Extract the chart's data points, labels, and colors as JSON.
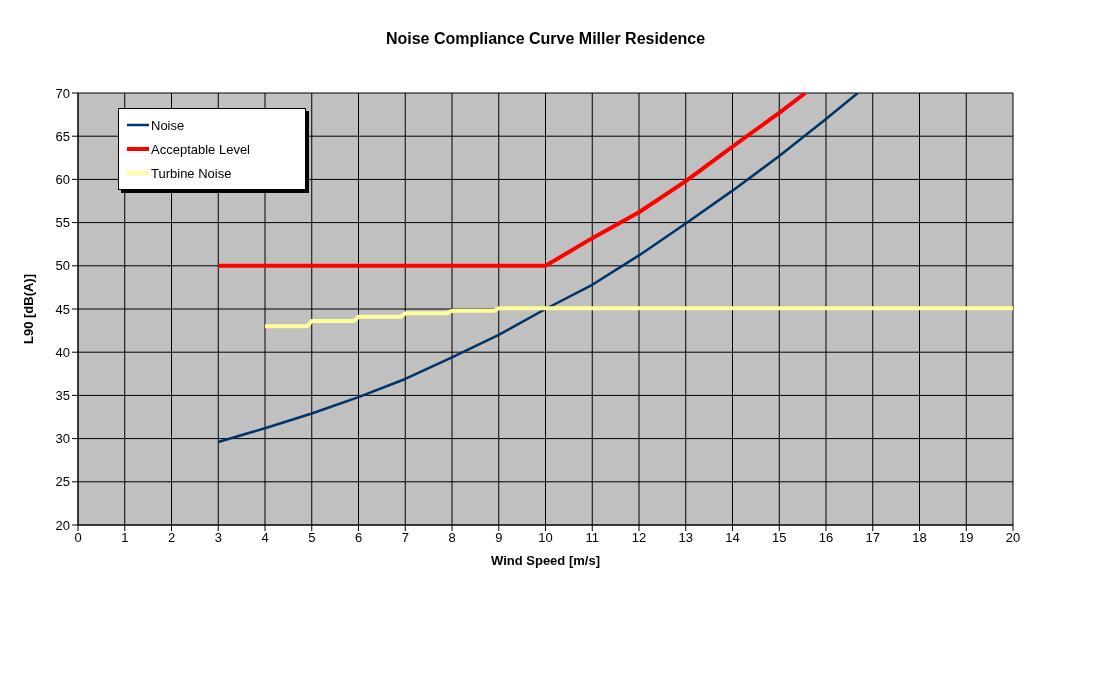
{
  "chart_data": {
    "type": "line",
    "title": "Noise Compliance Curve Miller Residence",
    "xlabel": "Wind Speed [m/s]",
    "ylabel": "L90 [dB(A)]",
    "xlim": [
      0,
      20
    ],
    "xticks": [
      0,
      1,
      2,
      3,
      4,
      5,
      6,
      7,
      8,
      9,
      10,
      11,
      12,
      13,
      14,
      15,
      16,
      17,
      18,
      19,
      20
    ],
    "ylim": [
      20,
      70
    ],
    "yticks": [
      20,
      25,
      30,
      35,
      40,
      45,
      50,
      55,
      60,
      65,
      70
    ],
    "grid": true,
    "legend": "top left",
    "marker": "none",
    "line_style": "solid",
    "series": [
      {
        "name": "Noise",
        "color": "#003366",
        "x": [
          3,
          4,
          5,
          6,
          7,
          8,
          9,
          10,
          11,
          12,
          13,
          14,
          15,
          16,
          16.68
        ],
        "values": [
          29.6,
          31.2,
          32.9,
          34.8,
          36.9,
          39.4,
          42.0,
          45.0,
          47.8,
          51.2,
          54.9,
          58.7,
          62.7,
          67.0,
          70
        ]
      },
      {
        "name": "Acceptable Level",
        "color": "#ff0000",
        "x": [
          3,
          10,
          11,
          12,
          13,
          14,
          15,
          15.56
        ],
        "values": [
          50,
          50,
          53.2,
          56.2,
          59.8,
          63.8,
          67.7,
          70
        ]
      },
      {
        "name": "Turbine Noise",
        "color": "#ffff99",
        "x": [
          4,
          4.9,
          5,
          5.9,
          6,
          6.9,
          7,
          7.9,
          8,
          8.9,
          9,
          20
        ],
        "values": [
          43.0,
          43.0,
          43.6,
          43.6,
          44.1,
          44.1,
          44.5,
          44.5,
          44.8,
          44.8,
          45.1,
          45.1
        ]
      }
    ]
  }
}
